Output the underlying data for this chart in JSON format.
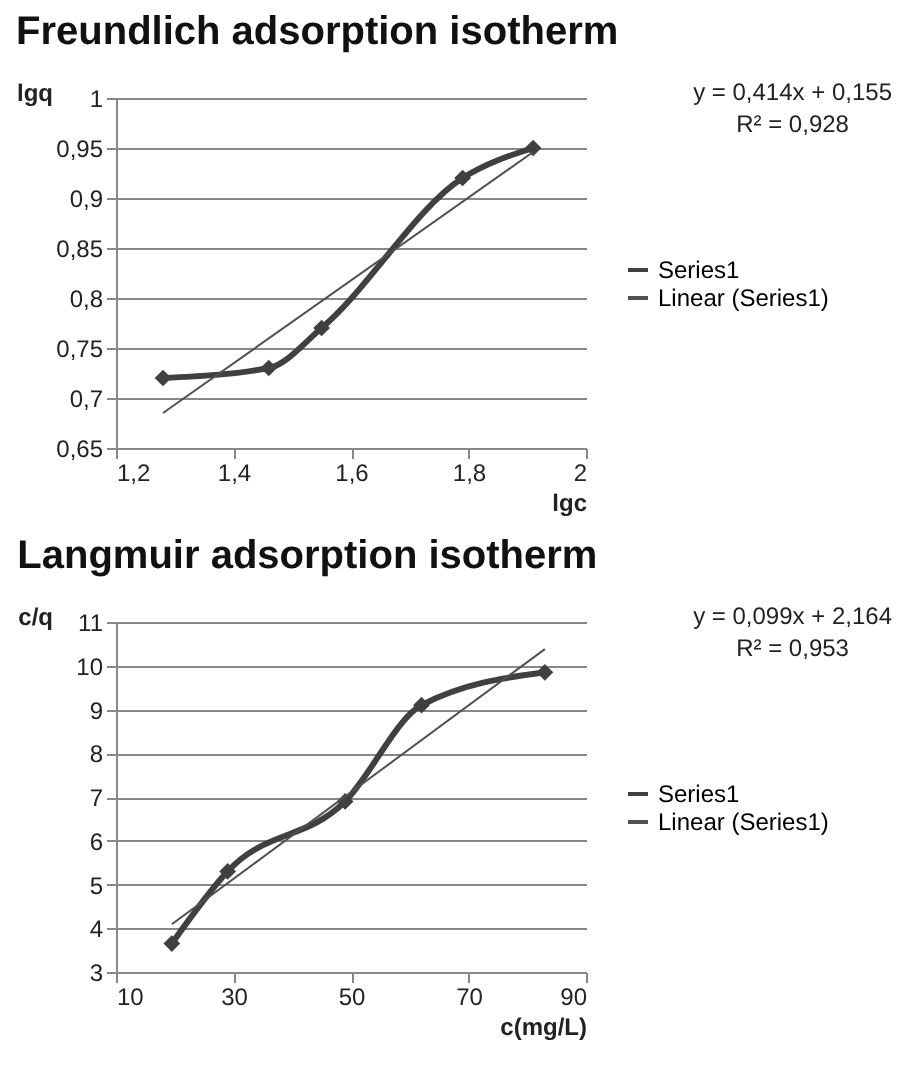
{
  "chart_data": [
    {
      "type": "line",
      "title": "Freundlich adsorption isotherm",
      "xlabel": "lgc",
      "ylabel": "lgq",
      "xlim": [
        1.2,
        2
      ],
      "ylim": [
        0.65,
        1
      ],
      "xticks": [
        {
          "value": 1.2,
          "label": "1,2"
        },
        {
          "value": 1.4,
          "label": "1,4"
        },
        {
          "value": 1.6,
          "label": "1,6"
        },
        {
          "value": 1.8,
          "label": "1,8"
        },
        2
      ],
      "yticks": [
        {
          "value": 0.65,
          "label": "0,65"
        },
        {
          "value": 0.7,
          "label": "0,7"
        },
        {
          "value": 0.75,
          "label": "0,75"
        },
        {
          "value": 0.8,
          "label": "0,8"
        },
        {
          "value": 0.85,
          "label": "0,85"
        },
        {
          "value": 0.9,
          "label": "0,9"
        },
        {
          "value": 0.95,
          "label": "0,95"
        },
        1
      ],
      "grid": "y",
      "legend": "right",
      "annotations": [
        "y = 0,414x + 0,155",
        "R² = 0,928"
      ],
      "series": [
        {
          "name": "Series1",
          "color": "#404040",
          "marker": "diamond",
          "x": [
            1.28,
            1.46,
            1.55,
            1.79,
            1.91
          ],
          "values": [
            0.72,
            0.73,
            0.77,
            0.92,
            0.95
          ]
        },
        {
          "name": "Linear (Series1)",
          "type": "line",
          "color": "#505050",
          "marker": "none",
          "x": [
            1.28,
            1.91
          ],
          "values": [
            0.685,
            0.946
          ]
        }
      ]
    },
    {
      "type": "line",
      "title": "Langmuir adsorption isotherm",
      "xlabel": "c(mg/L)",
      "ylabel": "c/q",
      "xlim": [
        10,
        90
      ],
      "ylim": [
        3,
        11
      ],
      "xticks": [
        10,
        30,
        50,
        70,
        90
      ],
      "yticks": [
        3,
        4,
        5,
        6,
        7,
        8,
        9,
        10,
        11
      ],
      "grid": "y",
      "legend": "right",
      "annotations": [
        "y = 0,099x + 2,164",
        "R² = 0,953"
      ],
      "series": [
        {
          "name": "Series1",
          "color": "#404040",
          "marker": "diamond",
          "x": [
            19.5,
            29,
            49,
            62,
            83
          ],
          "values": [
            3.65,
            5.3,
            6.9,
            9.1,
            9.85
          ]
        },
        {
          "name": "Linear (Series1)",
          "type": "line",
          "color": "#505050",
          "marker": "none",
          "x": [
            19.5,
            83
          ],
          "values": [
            4.09,
            10.38
          ]
        }
      ]
    }
  ]
}
